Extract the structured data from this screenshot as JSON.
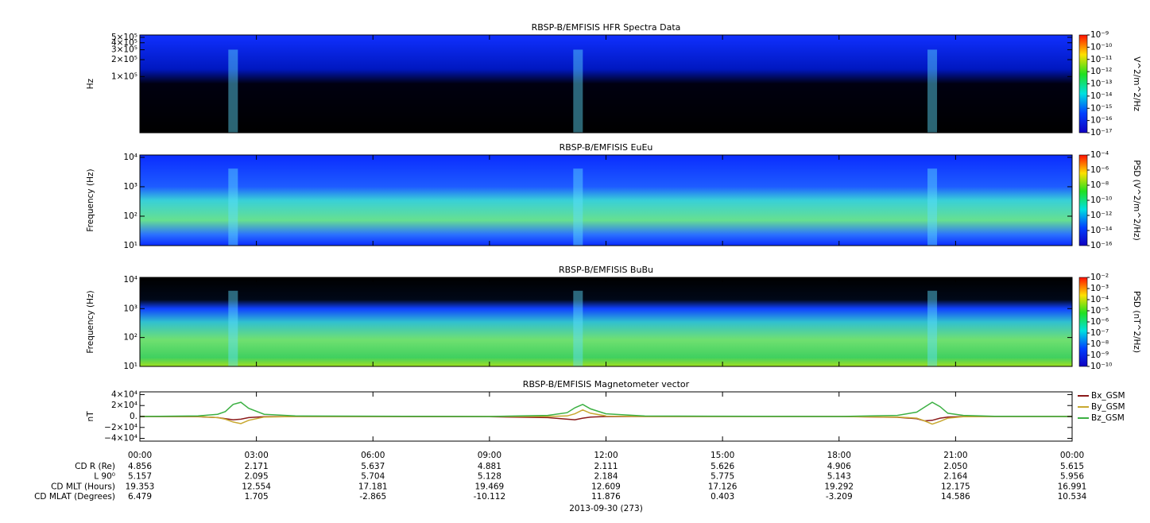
{
  "chart_data": [
    {
      "type": "spectrogram",
      "title": "RBSP-B/EMFISIS  HFR Spectra Data",
      "ylabel": "Hz",
      "log": true,
      "xlim": [
        0,
        24
      ],
      "xticks": [
        0,
        3,
        6,
        9,
        12,
        15,
        18,
        21,
        24
      ],
      "ylim": [
        10000,
        550000
      ],
      "yticks": [
        {
          "value": 100000,
          "label": "1×10⁵"
        },
        {
          "value": 200000,
          "label": "2×10⁵"
        },
        {
          "value": 300000,
          "label": "3×10⁵"
        },
        {
          "value": 400000,
          "label": "4×10⁵"
        },
        {
          "value": 500000,
          "label": "5×10⁵"
        }
      ],
      "colorbar": {
        "label": "V^2/m^2/Hz",
        "lim": [
          1e-17,
          1e-09
        ],
        "ticks": [
          {
            "value": 1e-17,
            "label": "10⁻¹⁷"
          },
          {
            "value": 1e-16,
            "label": "10⁻¹⁶"
          },
          {
            "value": 1e-15,
            "label": "10⁻¹⁵"
          },
          {
            "value": 1e-14,
            "label": "10⁻¹⁴"
          },
          {
            "value": 1e-13,
            "label": "10⁻¹³"
          },
          {
            "value": 1e-12,
            "label": "10⁻¹²"
          },
          {
            "value": 1e-11,
            "label": "10⁻¹¹"
          },
          {
            "value": 1e-10,
            "label": "10⁻¹⁰"
          },
          {
            "value": 1e-09,
            "label": "10⁻⁹"
          }
        ]
      }
    },
    {
      "type": "spectrogram",
      "title": "RBSP-B/EMFISIS  EuEu",
      "ylabel": "Frequency (Hz)",
      "log": true,
      "xlim": [
        0,
        24
      ],
      "xticks": [
        0,
        3,
        6,
        9,
        12,
        15,
        18,
        21,
        24
      ],
      "ylim": [
        10,
        12000
      ],
      "yticks": [
        {
          "value": 10,
          "label": "10¹"
        },
        {
          "value": 100,
          "label": "10²"
        },
        {
          "value": 1000,
          "label": "10³"
        },
        {
          "value": 10000,
          "label": "10⁴"
        }
      ],
      "colorbar": {
        "label": "PSD (V^2/m^2/Hz)",
        "lim": [
          1e-16,
          0.0001
        ],
        "ticks": [
          {
            "value": 1e-16,
            "label": "10⁻¹⁶"
          },
          {
            "value": 1e-14,
            "label": "10⁻¹⁴"
          },
          {
            "value": 1e-12,
            "label": "10⁻¹²"
          },
          {
            "value": 1e-10,
            "label": "10⁻¹⁰"
          },
          {
            "value": 1e-08,
            "label": "10⁻⁸"
          },
          {
            "value": 1e-06,
            "label": "10⁻⁶"
          },
          {
            "value": 0.0001,
            "label": "10⁻⁴"
          }
        ]
      }
    },
    {
      "type": "spectrogram",
      "title": "RBSP-B/EMFISIS  BuBu",
      "ylabel": "Frequency (Hz)",
      "log": true,
      "xlim": [
        0,
        24
      ],
      "xticks": [
        0,
        3,
        6,
        9,
        12,
        15,
        18,
        21,
        24
      ],
      "ylim": [
        10,
        12000
      ],
      "yticks": [
        {
          "value": 10,
          "label": "10¹"
        },
        {
          "value": 100,
          "label": "10²"
        },
        {
          "value": 1000,
          "label": "10³"
        },
        {
          "value": 10000,
          "label": "10⁴"
        }
      ],
      "colorbar": {
        "label": "PSD (nT^2/Hz)",
        "lim": [
          1e-10,
          0.01
        ],
        "ticks": [
          {
            "value": 1e-10,
            "label": "10⁻¹⁰"
          },
          {
            "value": 1e-09,
            "label": "10⁻⁹"
          },
          {
            "value": 1e-08,
            "label": "10⁻⁸"
          },
          {
            "value": 1e-07,
            "label": "10⁻⁷"
          },
          {
            "value": 1e-06,
            "label": "10⁻⁶"
          },
          {
            "value": 1e-05,
            "label": "10⁻⁵"
          },
          {
            "value": 0.0001,
            "label": "10⁻⁴"
          },
          {
            "value": 0.001,
            "label": "10⁻³"
          },
          {
            "value": 0.01,
            "label": "10⁻²"
          }
        ]
      }
    },
    {
      "type": "line",
      "title": "RBSP-B/EMFISIS  Magnetometer vector",
      "ylabel": "nT",
      "xlim": [
        0,
        24
      ],
      "xticks": [
        {
          "value": 0,
          "label": "00:00"
        },
        {
          "value": 3,
          "label": "03:00"
        },
        {
          "value": 6,
          "label": "06:00"
        },
        {
          "value": 9,
          "label": "09:00"
        },
        {
          "value": 12,
          "label": "12:00"
        },
        {
          "value": 15,
          "label": "15:00"
        },
        {
          "value": 18,
          "label": "18:00"
        },
        {
          "value": 21,
          "label": "21:00"
        },
        {
          "value": 24,
          "label": "00:00"
        }
      ],
      "ylim": [
        -45000,
        45000
      ],
      "yticks": [
        {
          "value": -40000,
          "label": "−4×10⁴"
        },
        {
          "value": -20000,
          "label": "−2×10⁴"
        },
        {
          "value": 0,
          "label": "0."
        },
        {
          "value": 20000,
          "label": "2×10⁴"
        },
        {
          "value": 40000,
          "label": "4×10⁴"
        }
      ],
      "x": [
        0,
        1.5,
        2.0,
        2.2,
        2.4,
        2.6,
        2.8,
        3.2,
        4,
        9,
        10.5,
        11.0,
        11.2,
        11.4,
        11.6,
        12.0,
        13,
        18,
        19.5,
        20.0,
        20.2,
        20.4,
        20.6,
        20.8,
        21.2,
        22,
        24
      ],
      "series": [
        {
          "name": "Bx_GSM",
          "color": "#8b1a1a",
          "values": [
            0,
            -500,
            -2000,
            -4000,
            -6000,
            -5000,
            -2000,
            -500,
            0,
            -500,
            -2000,
            -5000,
            -6000,
            -3000,
            -1000,
            0,
            0,
            0,
            -1500,
            -4000,
            -8000,
            -7000,
            -3000,
            -1000,
            0,
            0,
            0
          ]
        },
        {
          "name": "By_GSM",
          "color": "#c8a830",
          "values": [
            0,
            0,
            -2000,
            -5000,
            -10000,
            -13000,
            -7000,
            -1000,
            0,
            0,
            0,
            1000,
            5000,
            12000,
            6000,
            1000,
            0,
            0,
            -1000,
            -3000,
            -8000,
            -14000,
            -9000,
            -3000,
            -500,
            0,
            0
          ]
        },
        {
          "name": "Bz_GSM",
          "color": "#3cb043",
          "values": [
            0,
            1000,
            4000,
            9000,
            22000,
            26000,
            15000,
            4000,
            1000,
            0,
            2000,
            7000,
            16000,
            22000,
            14000,
            5000,
            800,
            0,
            2000,
            8000,
            17000,
            26000,
            18000,
            6000,
            2000,
            500,
            0
          ]
        }
      ]
    }
  ],
  "ephemeris": {
    "labels": [
      "CD R (Re)",
      "L 90⁰",
      "CD MLT (Hours)",
      "CD MLAT (Degrees)"
    ],
    "rows": [
      [
        "4.856",
        "2.171",
        "5.637",
        "4.881",
        "2.111",
        "5.626",
        "4.906",
        "2.050",
        "5.615"
      ],
      [
        "5.157",
        "2.095",
        "5.704",
        "5.128",
        "2.184",
        "5.775",
        "5.143",
        "2.164",
        "5.956"
      ],
      [
        "19.353",
        "12.554",
        "17.181",
        "19.469",
        "12.609",
        "17.126",
        "19.292",
        "12.175",
        "16.991"
      ],
      [
        "6.479",
        "1.705",
        "-2.865",
        "-10.112",
        "11.876",
        "0.403",
        "-3.209",
        "14.586",
        "10.534"
      ]
    ]
  },
  "date": "2013-09-30 (273)"
}
